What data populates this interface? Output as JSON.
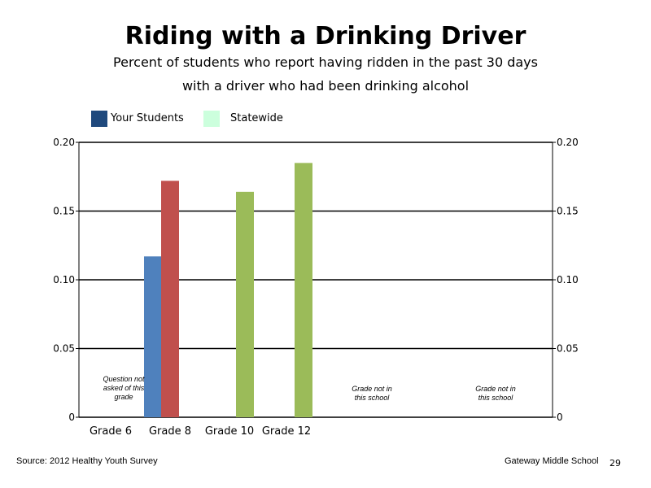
{
  "header": {
    "title": "Riding with a Drinking Driver",
    "subtitle_line1": "Percent of students who report having ridden in the past 30 days",
    "subtitle_line2": "with a driver who had been drinking alcohol"
  },
  "legend": [
    {
      "label": "Your Students",
      "color": "#1f497d"
    },
    {
      "label": "Statewide",
      "color": "#ccffdd"
    }
  ],
  "footer": {
    "source": "Source: 2012 Healthy Youth Survey",
    "school": "Gateway Middle  School",
    "page_number": "29"
  },
  "chart_data": {
    "type": "bar",
    "categories": [
      "Grade 6",
      "Grade 8",
      "Grade 10",
      "Grade 12"
    ],
    "ylim": [
      0,
      0.2
    ],
    "yticks": [
      "0",
      "0.05",
      "0.10",
      "0.15",
      "0.20"
    ],
    "grid": true,
    "bars": [
      {
        "category": "Grade 8",
        "value": 0.117,
        "color": "#4f81bd"
      },
      {
        "category": "Grade 8",
        "value": 0.172,
        "color": "#c0504d"
      },
      {
        "category": "Grade 10",
        "value": 0.164,
        "color": "#9bbb59"
      },
      {
        "category": "Grade 12",
        "value": 0.185,
        "color": "#9bbb59"
      }
    ],
    "annotations": [
      {
        "lines": [
          "Question not",
          "asked of this",
          "grade"
        ]
      },
      {
        "lines": [
          "Grade not in",
          "this school"
        ]
      },
      {
        "lines": [
          "Grade not in",
          "this school"
        ]
      }
    ]
  }
}
